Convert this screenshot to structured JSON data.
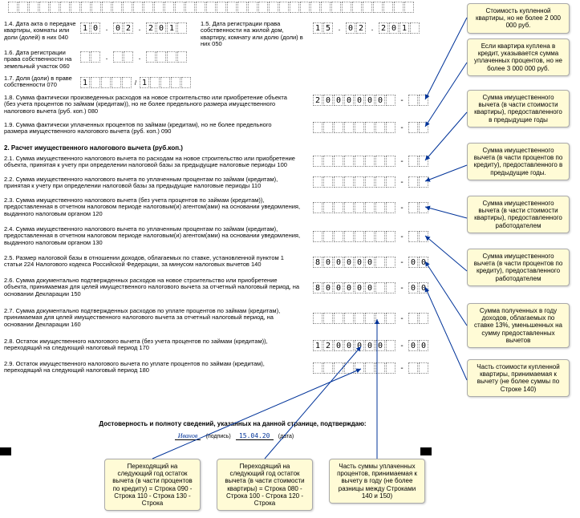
{
  "fields": {
    "f14_label": "1.4. Дата акта о передаче квартиры, комнаты или доли (долей) в них   040",
    "f14_date": [
      "1",
      "0",
      ".",
      "0",
      "2",
      ".",
      "2",
      "0",
      "1",
      " "
    ],
    "f15_label": "1.5. Дата регистрации права собственности на жилой дом, квартиру, комнату или долю (доли) в них   050",
    "f15_date": [
      "1",
      "5",
      ".",
      "0",
      "2",
      ".",
      "2",
      "0",
      "1",
      " "
    ],
    "f16_label": "1.6. Дата регистрации права собственности на земельный участок   060",
    "f16_date": [
      " ",
      " ",
      ".",
      " ",
      " ",
      ".",
      " ",
      " ",
      " ",
      " "
    ],
    "f17_label": "1.7. Доля (доли) в праве собственности   070",
    "f17_frac_a": [
      "1",
      " ",
      " ",
      " ",
      " "
    ],
    "f17_frac_b": [
      "1",
      " ",
      " ",
      " ",
      " "
    ],
    "f18_label": "1.8. Сумма фактически произведенных расходов на новое строительство или приобретение объекта (без учета процентов по займам (кредитам)), но не более предельного размера имущественного налогового вычета (руб. коп.)  080",
    "f18_val": [
      "2",
      "0",
      "0",
      "0",
      "0",
      "0",
      "0",
      " ",
      "-",
      " ",
      " "
    ],
    "f19_label": "1.9. Сумма фактически уплаченных процентов по займам (кредитам), но не более предельного размера имущественного налогового вычета (руб. коп.)  090",
    "f19_val": [
      " ",
      " ",
      " ",
      " ",
      " ",
      " ",
      " ",
      " ",
      "-",
      " ",
      " "
    ],
    "sec2_title": "2. Расчет имущественного налогового вычета (руб.коп.)",
    "f21_label": "2.1. Сумма имущественного налогового вычета по расходам на новое строительство или приобретение объекта, принятая к учету при определении налоговой базы за предыдущие налоговые периоды  100",
    "f21_val": [
      " ",
      " ",
      " ",
      " ",
      " ",
      " ",
      " ",
      " ",
      "-",
      " ",
      " "
    ],
    "f22_label": "2.2. Сумма имущественного налогового вычета по уплаченным процентам по займам (кредитам), принятая к учету при определении налоговой базы за предыдущие налоговые периоды  110",
    "f22_val": [
      " ",
      " ",
      " ",
      " ",
      " ",
      " ",
      " ",
      " ",
      "-",
      " ",
      " "
    ],
    "f23_label": "2.3. Сумма имущественного налогового вычета (без учета процентов по займам (кредитам)), предоставленная в отчетном налоговом периоде налоговым(и) агентом(ами) на основании уведомления, выданного налоговым органом  120",
    "f23_val": [
      " ",
      " ",
      " ",
      " ",
      " ",
      " ",
      " ",
      " ",
      "-",
      " ",
      " "
    ],
    "f24_label": "2.4. Сумма имущественного налогового вычета по уплаченным процентам по займам (кредитам), предоставленная в отчетном налоговом периоде налоговым(и) агентом(ами) на основании уведомления, выданного налоговым органом  130",
    "f24_val": [
      " ",
      " ",
      " ",
      " ",
      " ",
      " ",
      " ",
      " ",
      "-",
      " ",
      " "
    ],
    "f25_label": "2.5. Размер налоговой базы в отношении доходов, облагаемых по ставке, установленной пунктом 1 статьи 224 Налогового кодекса Российской Федерации, за минусом налоговых вычетов  140",
    "f25_val": [
      "8",
      "0",
      "0",
      "0",
      "0",
      "0",
      " ",
      " ",
      "-",
      "0",
      "0"
    ],
    "f26_label": "2.6. Сумма документально подтвержденных расходов на новое строительство или приобретение объекта, принимаемая для целей имущественного налогового вычета за отчетный налоговый период, на основании Декларации  150",
    "f26_val": [
      "8",
      "0",
      "0",
      "0",
      "0",
      "0",
      " ",
      " ",
      "-",
      "0",
      "0"
    ],
    "f27_label": "2.7. Сумма документально подтвержденных расходов по уплате процентов по займам (кредитам), принимаемая для целей имущественного налогового вычета за отчетный налоговый период, на основании Декларации  160",
    "f27_val": [
      " ",
      " ",
      " ",
      " ",
      " ",
      " ",
      " ",
      " ",
      "-",
      " ",
      " "
    ],
    "f28_label": "2.8. Остаток имущественного налогового вычета (без учета процентов по займам (кредитам)), переходящий на следующий налоговый период  170",
    "f28_val": [
      "1",
      "2",
      "0",
      "0",
      "0",
      "0",
      "0",
      " ",
      "-",
      "0",
      "0"
    ],
    "f29_label": "2.9. Остаток имущественного налогового вычета по уплате процентов по займам (кредитам), переходящий на следующий налоговый период  180",
    "f29_val": [
      " ",
      " ",
      " ",
      " ",
      " ",
      " ",
      " ",
      " ",
      "-",
      " ",
      " "
    ]
  },
  "signature": {
    "title": "Достоверность и полноту сведений, указанных на данной странице, подтверждаю:",
    "name": "Иванов",
    "name_label": "(подпись)",
    "date": "15.04.20",
    "date_label": "(дата)"
  },
  "annotations": {
    "a1": "Стоимость купленной квартиры, но не более   2 000 000 руб.",
    "a2": "Если квартира куплена в кредит, указывается сумма уплаченных процентов, но не более 3 000 000 руб.",
    "a3": "Сумма имущественного вычета (в части стоимости квартиры), предоставленного в предыдущие годы",
    "a4": "Сумма имущественного вычета (в части процентов по кредиту), предоставленного в предыдущие годы.",
    "a5": "Сумма имущественного вычета (в части стоимости квартиры), предоставленного работодателем",
    "a6": "Сумма имущественного вычета (в части процентов по кредиту), предоставленного работодателем",
    "a7": "Сумма полученных в году доходов, облагаемых по ставке 13%, уменьшенных на сумму предоставленных вычетов",
    "a8": "Часть стоимости купленной квартиры, принимаемая к вычету (не более суммы по Строке 140)",
    "b1": "Переходящий на следующий год остаток вычета (в части процентов по кредиту) = Строка 090 - Строка 110 - Строка 130 - Строка",
    "b2": "Переходящий на следующий год остаток вычета (в части стоимости квартиры) = Строка 080 - Строка 100 - Строка 120 - Строка",
    "b3": "Часть суммы уплаченных процентов, принимаемая к вычету в году (не более разницы между Строками 140 и 150)"
  },
  "colors": {
    "annot_bg": "#fffbd6",
    "annot_border": "#aaaaaa",
    "arrow": "#003399"
  }
}
